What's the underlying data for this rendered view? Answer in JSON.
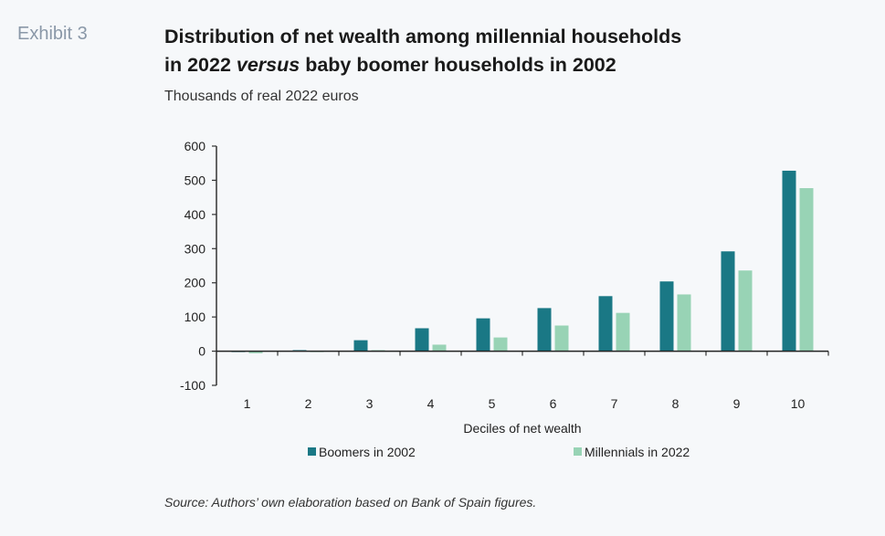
{
  "exhibit_label": "Exhibit 3",
  "title": {
    "line1": "Distribution of net wealth among millennial households",
    "line2_pre": "in 2022 ",
    "line2_italic": "versus",
    "line2_post": " baby boomer households in 2002"
  },
  "subtitle": "Thousands of real 2022 euros",
  "source": "Source: Authors’ own elaboration based on Bank of Spain figures.",
  "colors": {
    "boomers": "#1a7885",
    "millennials": "#98d3b5"
  },
  "chart_data": {
    "type": "bar",
    "title": "Distribution of net wealth among millennial households in 2022 versus baby boomer households in 2002",
    "xlabel": "Deciles of net wealth",
    "ylabel": "Thousands of real 2022 euros",
    "ylim": [
      -100,
      600
    ],
    "yticks": [
      "600",
      "500",
      "400",
      "300",
      "200",
      "100",
      "0",
      "-100"
    ],
    "categories": [
      "1",
      "2",
      "3",
      "4",
      "5",
      "6",
      "7",
      "8",
      "9",
      "10"
    ],
    "series": [
      {
        "name": "Boomers in 2002",
        "values": [
          0,
          3,
          32,
          67,
          96,
          126,
          161,
          204,
          292,
          528
        ]
      },
      {
        "name": "Millennials in 2022",
        "values": [
          -6,
          0,
          3,
          19,
          40,
          75,
          112,
          166,
          236,
          477
        ]
      }
    ],
    "legend": "bottom"
  }
}
